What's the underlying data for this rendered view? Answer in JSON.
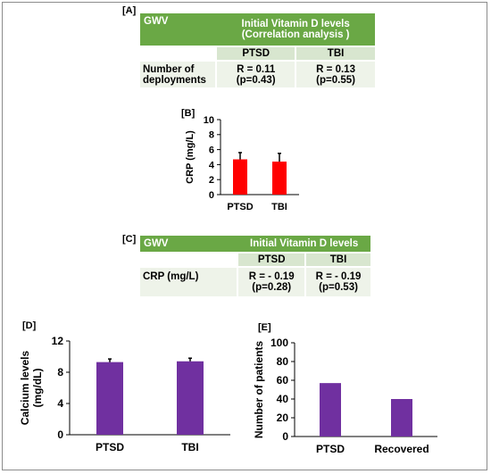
{
  "panel_labels": {
    "a": "[A]",
    "b": "[B]",
    "c": "[C]",
    "d": "[D]",
    "e": "[E]"
  },
  "table_a": {
    "corner": "GWV",
    "header_line1": "Initial Vitamin D levels",
    "header_line2": "(Correlation analysis )",
    "col1": "PTSD",
    "col2": "TBI",
    "row_label_line1": "Number of",
    "row_label_line2": "deployments",
    "cell1_line1": "R = 0.11",
    "cell1_line2": "(p=0.43)",
    "cell2_line1": "R = 0.13",
    "cell2_line2": "(p=0.55)"
  },
  "table_c": {
    "corner": "GWV",
    "header": "Initial Vitamin D levels",
    "col1": "PTSD",
    "col2": "TBI",
    "row_label": "CRP (mg/L)",
    "cell1_line1": "R = - 0.19",
    "cell1_line2": "(p=0.28)",
    "cell2_line1": "R = - 0.19",
    "cell2_line2": "(p=0.53)"
  },
  "colors": {
    "green_header": "#6aa845",
    "red_bar": "#ff0000",
    "purple_bar": "#7030a0",
    "error_bar": "#000000"
  },
  "chart_data": [
    {
      "panel": "B",
      "type": "bar",
      "categories": [
        "PTSD",
        "TBI"
      ],
      "values": [
        4.7,
        4.4
      ],
      "errors": [
        0.9,
        1.1
      ],
      "ylabel": "CRP (mg/L)",
      "ylim": [
        0,
        10
      ],
      "yticks": [
        0,
        2,
        4,
        6,
        8,
        10
      ],
      "color": "#ff0000",
      "grid": false
    },
    {
      "panel": "D",
      "type": "bar",
      "categories": [
        "PTSD",
        "TBI"
      ],
      "values": [
        9.3,
        9.4
      ],
      "errors": [
        0.4,
        0.4
      ],
      "ylabel_line1": "Calcium levels",
      "ylabel_line2": "(mg/dL)",
      "ylim": [
        0,
        12
      ],
      "yticks": [
        0,
        4,
        8,
        12
      ],
      "color": "#7030a0",
      "grid": false
    },
    {
      "panel": "E",
      "type": "bar",
      "categories": [
        "PTSD",
        "Recovered"
      ],
      "values": [
        57,
        40
      ],
      "ylabel": "Number of patients",
      "ylim": [
        0,
        100
      ],
      "yticks": [
        0,
        20,
        40,
        60,
        80,
        100
      ],
      "color": "#7030a0",
      "grid": false
    }
  ]
}
